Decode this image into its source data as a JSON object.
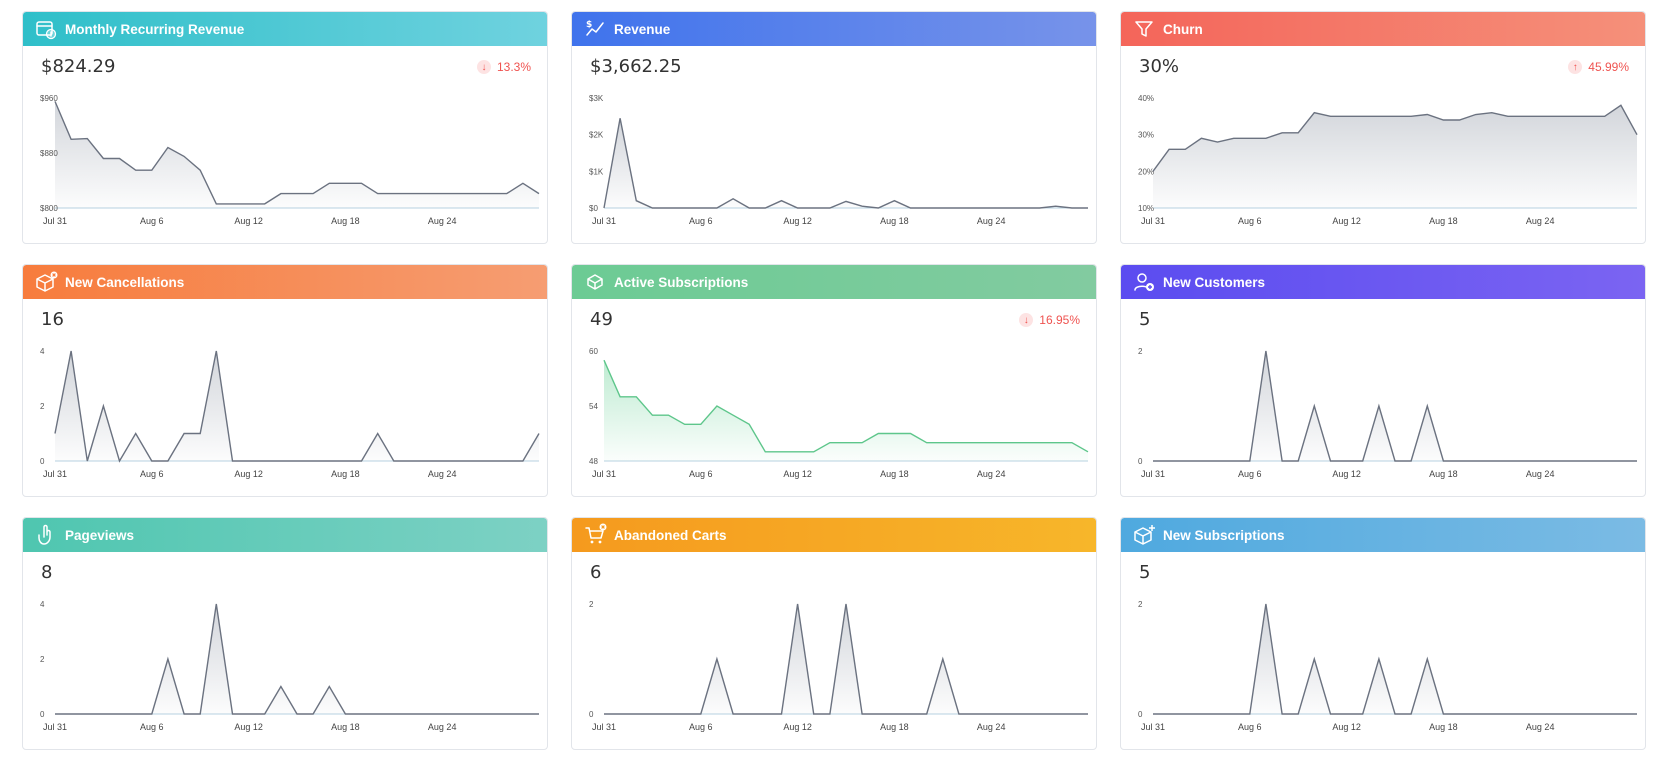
{
  "x_labels": [
    "Jul 31",
    "Aug 6",
    "Aug 12",
    "Aug 18",
    "Aug 24"
  ],
  "cards": [
    {
      "title": "Monthly Recurring Revenue",
      "icon": "calendar-dollar-icon",
      "value": "$824.29",
      "change": {
        "direction": "down",
        "text": "13.3%"
      },
      "gradient": [
        "#2fbfc9",
        "#6fd2df"
      ],
      "line_color": "#6b7280",
      "fill_color": "#9ca3af",
      "y_ticks": [
        "$960",
        "$880",
        "$800"
      ],
      "ylim": [
        800,
        960
      ],
      "chart_data": {
        "type": "area",
        "series": [
          {
            "values": [
              955,
              900,
              901,
              872,
              872,
              855,
              855,
              888,
              875,
              855,
              806,
              806,
              806,
              806,
              821,
              821,
              821,
              836,
              836,
              836,
              821,
              821,
              821,
              821,
              821,
              821,
              821,
              821,
              821,
              836,
              821
            ]
          }
        ]
      }
    },
    {
      "title": "Revenue",
      "icon": "revenue-chart-icon",
      "value": "$3,662.25",
      "change": null,
      "gradient": [
        "#3f73ec",
        "#7793ea"
      ],
      "line_color": "#6b7280",
      "fill_color": "#9ca3af",
      "y_ticks": [
        "$3K",
        "$2K",
        "$1K",
        "$0"
      ],
      "ylim": [
        0,
        3000
      ],
      "chart_data": {
        "type": "area",
        "series": [
          {
            "values": [
              0,
              2450,
              200,
              0,
              0,
              0,
              0,
              0,
              250,
              0,
              0,
              200,
              0,
              0,
              0,
              180,
              50,
              0,
              200,
              0,
              0,
              0,
              0,
              0,
              0,
              0,
              0,
              0,
              50,
              0,
              0
            ]
          }
        ]
      }
    },
    {
      "title": "Churn",
      "icon": "funnel-icon",
      "value": "30%",
      "change": {
        "direction": "up",
        "text": "45.99%"
      },
      "gradient": [
        "#f4655a",
        "#f5907a"
      ],
      "line_color": "#6b7280",
      "fill_color": "#9ca3af",
      "y_ticks": [
        "40%",
        "30%",
        "20%",
        "10%"
      ],
      "ylim": [
        10,
        40
      ],
      "chart_data": {
        "type": "area",
        "series": [
          {
            "values": [
              20,
              26,
              26,
              29,
              28,
              29,
              29,
              29,
              30.5,
              30.5,
              36,
              35,
              35,
              35,
              35,
              35,
              35,
              35.5,
              34,
              34,
              35.5,
              36,
              35,
              35,
              35,
              35,
              35,
              35,
              35,
              38,
              30
            ]
          }
        ]
      }
    },
    {
      "title": "New Cancellations",
      "icon": "box-cancel-icon",
      "value": "16",
      "change": null,
      "gradient": [
        "#f77c3d",
        "#f69d72"
      ],
      "line_color": "#6b7280",
      "fill_color": "#9ca3af",
      "y_ticks": [
        "4",
        "2",
        "0"
      ],
      "ylim": [
        0,
        4
      ],
      "chart_data": {
        "type": "area",
        "series": [
          {
            "values": [
              1,
              4,
              0,
              2,
              0,
              1,
              0,
              0,
              1,
              1,
              4,
              0,
              0,
              0,
              0,
              0,
              0,
              0,
              0,
              0,
              1,
              0,
              0,
              0,
              0,
              0,
              0,
              0,
              0,
              0,
              1
            ]
          }
        ]
      }
    },
    {
      "title": "Active Subscriptions",
      "icon": "box-subscription-icon",
      "value": "49",
      "change": {
        "direction": "down",
        "text": "16.95%"
      },
      "gradient": [
        "#6ccb94",
        "#82cba0"
      ],
      "line_color": "#5ec68b",
      "fill_color": "#6fd39a",
      "y_ticks": [
        "60",
        "54",
        "48"
      ],
      "ylim": [
        48,
        60
      ],
      "chart_data": {
        "type": "area",
        "series": [
          {
            "values": [
              59,
              55,
              55,
              53,
              53,
              52,
              52,
              54,
              53,
              52,
              49,
              49,
              49,
              49,
              50,
              50,
              50,
              51,
              51,
              51,
              50,
              50,
              50,
              50,
              50,
              50,
              50,
              50,
              50,
              50,
              49
            ]
          }
        ]
      }
    },
    {
      "title": "New Customers",
      "icon": "user-add-icon",
      "value": "5",
      "change": null,
      "gradient": [
        "#5b4cf0",
        "#7b64f2"
      ],
      "line_color": "#6b7280",
      "fill_color": "#9ca3af",
      "y_ticks": [
        "2",
        "0"
      ],
      "ylim": [
        0,
        2
      ],
      "chart_data": {
        "type": "area",
        "series": [
          {
            "values": [
              0,
              0,
              0,
              0,
              0,
              0,
              0,
              2,
              0,
              0,
              1,
              0,
              0,
              0,
              1,
              0,
              0,
              1,
              0,
              0,
              0,
              0,
              0,
              0,
              0,
              0,
              0,
              0,
              0,
              0,
              0
            ]
          }
        ]
      }
    },
    {
      "title": "Pageviews",
      "icon": "pointer-click-icon",
      "value": "8",
      "change": null,
      "gradient": [
        "#4fc6b0",
        "#7dd1c4"
      ],
      "line_color": "#6b7280",
      "fill_color": "#9ca3af",
      "y_ticks": [
        "4",
        "2",
        "0"
      ],
      "ylim": [
        0,
        4
      ],
      "chart_data": {
        "type": "area",
        "series": [
          {
            "values": [
              0,
              0,
              0,
              0,
              0,
              0,
              0,
              2,
              0,
              0,
              4,
              0,
              0,
              0,
              1,
              0,
              0,
              1,
              0,
              0,
              0,
              0,
              0,
              0,
              0,
              0,
              0,
              0,
              0,
              0,
              0
            ]
          }
        ]
      }
    },
    {
      "title": "Abandoned Carts",
      "icon": "cart-cancel-icon",
      "value": "6",
      "change": null,
      "gradient": [
        "#f59a1e",
        "#f7b62a"
      ],
      "line_color": "#6b7280",
      "fill_color": "#9ca3af",
      "y_ticks": [
        "2",
        "0"
      ],
      "ylim": [
        0,
        2
      ],
      "chart_data": {
        "type": "area",
        "series": [
          {
            "values": [
              0,
              0,
              0,
              0,
              0,
              0,
              0,
              1,
              0,
              0,
              0,
              0,
              2,
              0,
              0,
              2,
              0,
              0,
              0,
              0,
              0,
              1,
              0,
              0,
              0,
              0,
              0,
              0,
              0,
              0,
              0
            ]
          }
        ]
      }
    },
    {
      "title": "New Subscriptions",
      "icon": "box-add-icon",
      "value": "5",
      "change": null,
      "gradient": [
        "#4fa9df",
        "#7bbbe4"
      ],
      "line_color": "#6b7280",
      "fill_color": "#9ca3af",
      "y_ticks": [
        "2",
        "0"
      ],
      "ylim": [
        0,
        2
      ],
      "chart_data": {
        "type": "area",
        "series": [
          {
            "values": [
              0,
              0,
              0,
              0,
              0,
              0,
              0,
              2,
              0,
              0,
              1,
              0,
              0,
              0,
              1,
              0,
              0,
              1,
              0,
              0,
              0,
              0,
              0,
              0,
              0,
              0,
              0,
              0,
              0,
              0,
              0
            ]
          }
        ]
      }
    }
  ]
}
